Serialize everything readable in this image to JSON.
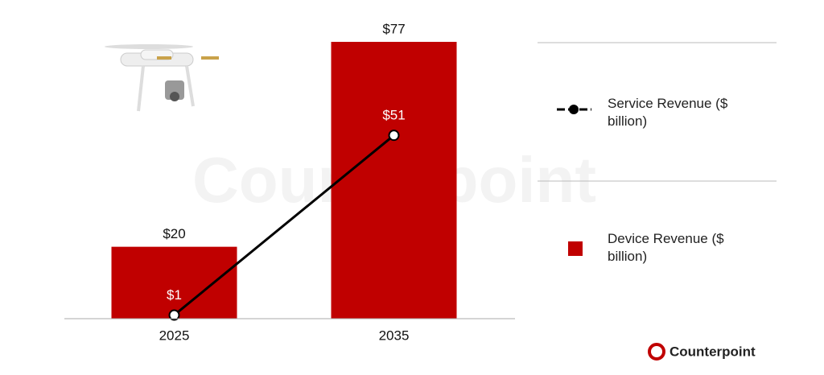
{
  "chart_data": {
    "type": "bar",
    "categories": [
      "2025",
      "2035"
    ],
    "series": [
      {
        "name": "Device Revenue ($ billion)",
        "type": "bar",
        "color": "#c00000",
        "values": [
          20,
          77
        ],
        "value_labels": [
          "$20",
          "$77"
        ]
      },
      {
        "name": "Service Revenue ($ billion)",
        "type": "line",
        "color": "#000000",
        "values": [
          1,
          51
        ],
        "value_labels": [
          "$1",
          "$51"
        ]
      }
    ],
    "ylim": [
      0,
      77
    ],
    "brand": "Counterpoint"
  }
}
